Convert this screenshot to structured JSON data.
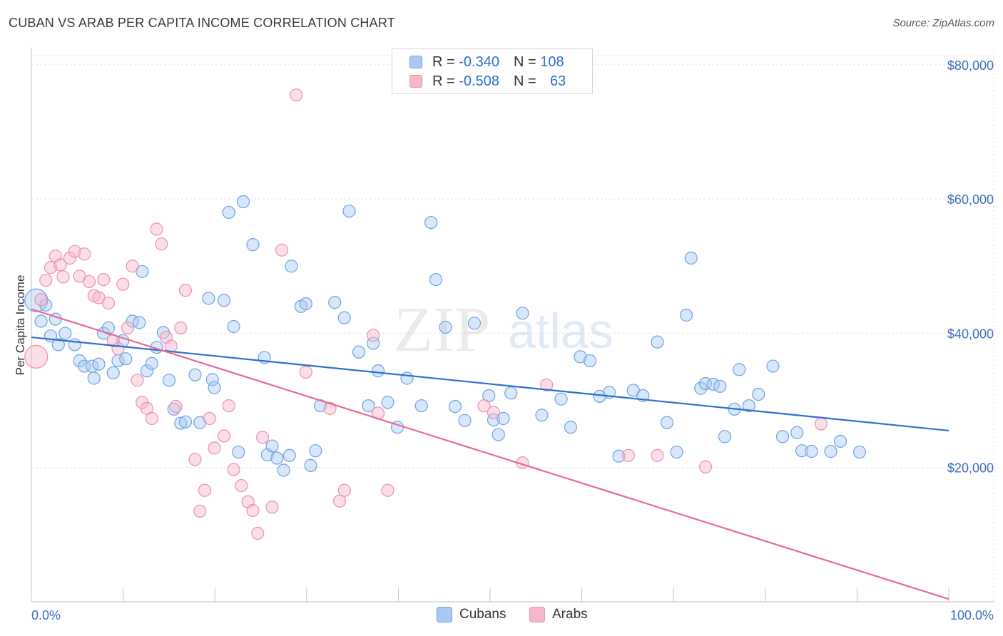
{
  "header": {
    "title": "CUBAN VS ARAB PER CAPITA INCOME CORRELATION CHART",
    "source": "Source: ZipAtlas.com"
  },
  "legend": {
    "rows": [
      {
        "r_label": "R =",
        "r_value": "-0.340",
        "n_label": "N =",
        "n_value": "108",
        "color": "#a9c9f2"
      },
      {
        "r_label": "R =",
        "r_value": "-0.508",
        "n_label": "N =",
        "n_value": "63",
        "color": "#f7b8cc"
      }
    ]
  },
  "bottom_legend": [
    {
      "label": "Cubans",
      "color": "#a9c9f2"
    },
    {
      "label": "Arabs",
      "color": "#f7b8cc"
    }
  ],
  "watermark": {
    "zip": "ZIP",
    "atlas": "atlas"
  },
  "chart_data": {
    "type": "scatter",
    "title": "CUBAN VS ARAB PER CAPITA INCOME CORRELATION CHART",
    "xlabel": "",
    "ylabel": "Per Capita Income",
    "x_tick_labels": [
      "0.0%",
      "100.0%"
    ],
    "y_tick_labels": [
      "$20,000",
      "$40,000",
      "$60,000",
      "$80,000"
    ],
    "y_ticks": [
      20000,
      40000,
      60000,
      80000
    ],
    "xlim": [
      0,
      100
    ],
    "ylim": [
      0,
      82000
    ],
    "grid": true,
    "legend_position": "top-center",
    "series": [
      {
        "name": "Cubans",
        "color": "#6fa2e3",
        "fill": "#a9c9f2",
        "trend": {
          "x": [
            0,
            100
          ],
          "y": [
            39400,
            25500
          ],
          "color": "#2c6fd1"
        },
        "points": [
          [
            0.5,
            44.9
          ],
          [
            1.0,
            41.8
          ],
          [
            1.5,
            44.2
          ],
          [
            2.5,
            42.1
          ],
          [
            2.0,
            39.6
          ],
          [
            3.5,
            40.0
          ],
          [
            2.8,
            38.3
          ],
          [
            4.5,
            38.3
          ],
          [
            5.0,
            35.9
          ],
          [
            5.5,
            35.1
          ],
          [
            6.3,
            35.1
          ],
          [
            6.5,
            33.3
          ],
          [
            7.0,
            35.4
          ],
          [
            7.5,
            40.0
          ],
          [
            8.0,
            40.8
          ],
          [
            8.5,
            34.1
          ],
          [
            9.0,
            35.9
          ],
          [
            9.5,
            38.9
          ],
          [
            9.8,
            36.2
          ],
          [
            10.5,
            41.8
          ],
          [
            11.2,
            41.6
          ],
          [
            11.5,
            49.2
          ],
          [
            12.0,
            34.4
          ],
          [
            12.5,
            35.5
          ],
          [
            13.0,
            37.9
          ],
          [
            13.7,
            40.1
          ],
          [
            14.3,
            33.0
          ],
          [
            14.8,
            28.7
          ],
          [
            15.5,
            26.6
          ],
          [
            16.0,
            26.8
          ],
          [
            17.0,
            33.8
          ],
          [
            17.5,
            26.7
          ],
          [
            18.4,
            45.2
          ],
          [
            18.8,
            33.1
          ],
          [
            19.0,
            31.9
          ],
          [
            20.0,
            44.9
          ],
          [
            20.5,
            58.0
          ],
          [
            21.0,
            41.0
          ],
          [
            21.5,
            22.3
          ],
          [
            22.0,
            59.6
          ],
          [
            23.0,
            53.2
          ],
          [
            24.2,
            36.4
          ],
          [
            24.5,
            21.9
          ],
          [
            25.0,
            23.2
          ],
          [
            25.5,
            21.4
          ],
          [
            26.2,
            19.6
          ],
          [
            26.8,
            21.8
          ],
          [
            27.0,
            50.0
          ],
          [
            28.0,
            44.0
          ],
          [
            28.5,
            44.4
          ],
          [
            29.0,
            20.3
          ],
          [
            29.5,
            22.5
          ],
          [
            30.0,
            29.2
          ],
          [
            31.5,
            44.6
          ],
          [
            32.5,
            42.3
          ],
          [
            33.0,
            58.2
          ],
          [
            34.0,
            37.2
          ],
          [
            35.0,
            29.2
          ],
          [
            35.5,
            38.5
          ],
          [
            36.0,
            34.4
          ],
          [
            37.0,
            29.7
          ],
          [
            38.0,
            26.0
          ],
          [
            39.0,
            33.3
          ],
          [
            40.5,
            29.2
          ],
          [
            41.5,
            56.5
          ],
          [
            42.0,
            48.0
          ],
          [
            43.0,
            40.9
          ],
          [
            44.0,
            29.1
          ],
          [
            45.0,
            27.0
          ],
          [
            46.0,
            41.5
          ],
          [
            47.5,
            30.7
          ],
          [
            48.0,
            27.1
          ],
          [
            48.5,
            24.9
          ],
          [
            49.0,
            27.3
          ],
          [
            49.8,
            31.1
          ],
          [
            51.0,
            43.0
          ],
          [
            53.0,
            27.8
          ],
          [
            55.0,
            30.2
          ],
          [
            56.0,
            26.0
          ],
          [
            57.0,
            36.5
          ],
          [
            58.0,
            35.9
          ],
          [
            59.0,
            30.6
          ],
          [
            60.0,
            31.2
          ],
          [
            61.0,
            21.7
          ],
          [
            62.5,
            31.5
          ],
          [
            63.5,
            30.7
          ],
          [
            65.0,
            38.7
          ],
          [
            66.0,
            26.7
          ],
          [
            67.0,
            22.3
          ],
          [
            68.0,
            42.7
          ],
          [
            68.5,
            51.2
          ],
          [
            69.5,
            31.8
          ],
          [
            70.0,
            32.5
          ],
          [
            70.8,
            32.4
          ],
          [
            71.5,
            32.1
          ],
          [
            72.0,
            24.6
          ],
          [
            73.0,
            28.7
          ],
          [
            73.5,
            34.6
          ],
          [
            74.5,
            29.2
          ],
          [
            75.5,
            30.9
          ],
          [
            77.0,
            35.1
          ],
          [
            78.0,
            24.6
          ],
          [
            79.5,
            25.2
          ],
          [
            80.0,
            22.5
          ],
          [
            81.0,
            22.4
          ],
          [
            83.0,
            22.4
          ],
          [
            84.0,
            23.9
          ],
          [
            86.0,
            22.3
          ]
        ]
      },
      {
        "name": "Arabs",
        "color": "#ec8fae",
        "fill": "#f7b8cc",
        "trend": {
          "x": [
            0,
            100
          ],
          "y": [
            43600,
            400
          ],
          "color": "#e86a94"
        },
        "points": [
          [
            0.5,
            36.5
          ],
          [
            1.0,
            45.0
          ],
          [
            1.5,
            47.9
          ],
          [
            2.0,
            49.8
          ],
          [
            2.5,
            51.5
          ],
          [
            3.0,
            50.2
          ],
          [
            3.3,
            48.4
          ],
          [
            4.0,
            51.2
          ],
          [
            4.5,
            52.2
          ],
          [
            5.0,
            48.5
          ],
          [
            5.5,
            51.8
          ],
          [
            6.0,
            47.7
          ],
          [
            6.5,
            45.6
          ],
          [
            7.0,
            45.3
          ],
          [
            7.5,
            48.0
          ],
          [
            8.0,
            44.5
          ],
          [
            8.5,
            38.9
          ],
          [
            9.0,
            37.7
          ],
          [
            9.5,
            47.3
          ],
          [
            10.0,
            40.8
          ],
          [
            10.5,
            50.0
          ],
          [
            11.0,
            33.0
          ],
          [
            11.5,
            29.7
          ],
          [
            12.0,
            28.8
          ],
          [
            12.5,
            27.3
          ],
          [
            13.0,
            55.5
          ],
          [
            13.5,
            53.3
          ],
          [
            14.0,
            39.4
          ],
          [
            14.5,
            38.1
          ],
          [
            15.0,
            29.1
          ],
          [
            15.5,
            40.8
          ],
          [
            16.0,
            46.4
          ],
          [
            17.0,
            21.2
          ],
          [
            17.5,
            13.5
          ],
          [
            18.0,
            16.6
          ],
          [
            18.5,
            27.3
          ],
          [
            19.0,
            22.9
          ],
          [
            20.0,
            24.7
          ],
          [
            20.5,
            29.2
          ],
          [
            21.0,
            19.7
          ],
          [
            21.8,
            17.3
          ],
          [
            22.5,
            14.9
          ],
          [
            23.0,
            13.6
          ],
          [
            23.5,
            10.2
          ],
          [
            24.0,
            24.5
          ],
          [
            25.0,
            14.1
          ],
          [
            26.0,
            52.4
          ],
          [
            27.5,
            75.5
          ],
          [
            28.5,
            34.2
          ],
          [
            31.0,
            28.8
          ],
          [
            32.0,
            15.0
          ],
          [
            32.5,
            16.6
          ],
          [
            35.5,
            39.7
          ],
          [
            36.0,
            28.1
          ],
          [
            37.0,
            16.6
          ],
          [
            47.0,
            29.2
          ],
          [
            48.0,
            28.2
          ],
          [
            51.0,
            20.7
          ],
          [
            53.5,
            32.3
          ],
          [
            62.0,
            21.8
          ],
          [
            65.0,
            21.8
          ],
          [
            70.0,
            20.1
          ],
          [
            82.0,
            26.5
          ]
        ]
      }
    ]
  }
}
